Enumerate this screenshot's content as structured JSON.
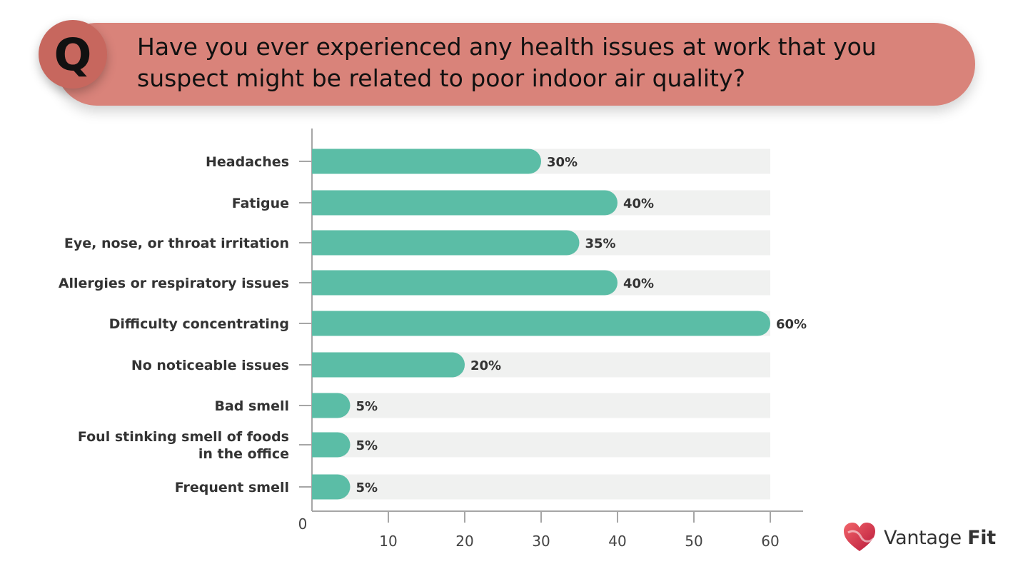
{
  "header": {
    "badge": "Q",
    "question": "Have you ever experienced any health issues at work that you suspect might be related to poor indoor air quality?"
  },
  "brand": {
    "name_light": "Vantage",
    "name_bold": "Fit",
    "logo_icon": "heart-logo-icon"
  },
  "colors": {
    "bar": "#5bbda6",
    "track": "#f0f1f0",
    "banner": "#d9837a",
    "axis": "#a6a6a6"
  },
  "chart_data": {
    "type": "bar",
    "orientation": "horizontal",
    "categories": [
      [
        "Headaches"
      ],
      [
        "Fatigue"
      ],
      [
        "Eye, nose, or throat irritation"
      ],
      [
        "Allergies or respiratory issues"
      ],
      [
        "Difficulty concentrating"
      ],
      [
        "No noticeable issues"
      ],
      [
        "Bad smell"
      ],
      [
        "Foul stinking smell of foods",
        "in the office"
      ],
      [
        "Frequent smell"
      ]
    ],
    "values": [
      30,
      40,
      35,
      40,
      60,
      20,
      5,
      5,
      5
    ],
    "value_labels": [
      "30%",
      "40%",
      "35%",
      "40%",
      "60%",
      "20%",
      "5%",
      "5%",
      "5%"
    ],
    "xlim": [
      0,
      60
    ],
    "xticks": [
      0,
      10,
      20,
      30,
      40,
      50,
      60
    ],
    "grid": false
  }
}
